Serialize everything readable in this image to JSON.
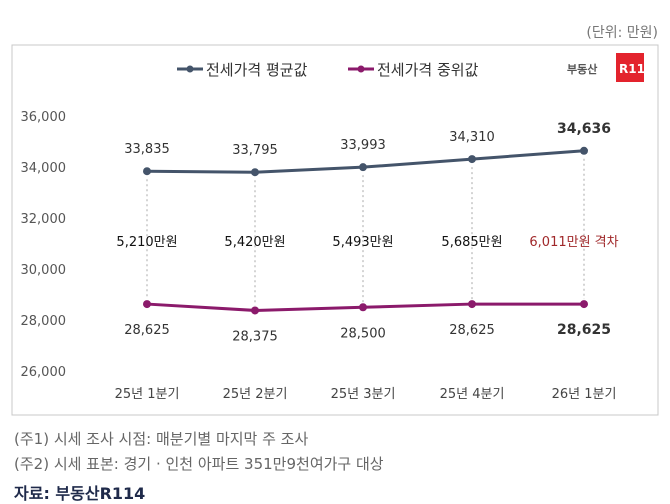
{
  "unit_label": "(단위: 만원)",
  "logo_text": "부동산R114",
  "chart_data": {
    "type": "line",
    "categories": [
      "25년 1분기",
      "25년 2분기",
      "25년 3분기",
      "25년 4분기",
      "26년 1분기"
    ],
    "series": [
      {
        "name": "전세가격 평균값",
        "values": [
          33835,
          33795,
          33993,
          34310,
          34636
        ],
        "labels": [
          "33,835",
          "33,795",
          "33,993",
          "34,310",
          "34,636"
        ],
        "color": "#44546a"
      },
      {
        "name": "전세가격 중위값",
        "values": [
          28625,
          28375,
          28500,
          28625,
          28625
        ],
        "labels": [
          "28,625",
          "28,375",
          "28,500",
          "28,625",
          "28,625"
        ],
        "color": "#8b1a6b"
      }
    ],
    "gap_labels": [
      "5,210만원",
      "5,420만원",
      "5,493만원",
      "5,685만원",
      "6,011만원  격차"
    ],
    "gap_last_color": "#a0282a",
    "ylim": [
      26000,
      36000
    ],
    "yticks": [
      "26,000",
      "28,000",
      "30,000",
      "32,000",
      "34,000",
      "36,000"
    ],
    "grid": false,
    "legend": "top"
  },
  "notes": [
    "(주1) 시세 조사 시점: 매분기별 마지막 주 조사",
    "(주2) 시세 표본: 경기 · 인천 아파트 351만9천여가구 대상"
  ],
  "source": "자료: 부동산R114"
}
